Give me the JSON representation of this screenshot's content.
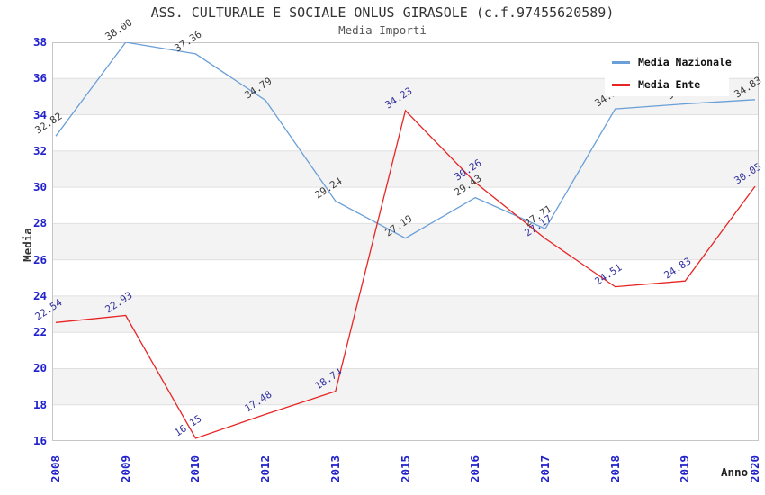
{
  "header": {
    "title": "ASS. CULTURALE E SOCIALE ONLUS GIRASOLE (c.f.97455620589)",
    "subtitle": "Media Importi"
  },
  "axes": {
    "xlabel": "Anno",
    "ylabel": "Media"
  },
  "colors": {
    "nazionale_line": "#6a9fd8",
    "ente_line": "#e82525",
    "tick_label": "#2222cc",
    "grid_band": "#f3f3f3",
    "grid_line": "#e0e0e0",
    "plot_border": "#c6c6c6",
    "nazionale_point_label": "#3a3a3a",
    "ente_point_label": "#32329e"
  },
  "chart_data": {
    "type": "line",
    "title": "ASS. CULTURALE E SOCIALE ONLUS GIRASOLE (c.f.97455620589)",
    "subtitle": "Media Importi",
    "xlabel": "Anno",
    "ylabel": "Media",
    "categories": [
      "2008",
      "2009",
      "2010",
      "2012",
      "2013",
      "2015",
      "2016",
      "2017",
      "2018",
      "2019",
      "2020"
    ],
    "ylim": [
      16,
      38
    ],
    "yticks": [
      16,
      18,
      20,
      22,
      24,
      26,
      28,
      30,
      32,
      34,
      36,
      38
    ],
    "grid": "horizontal-lines-with-alternating-bands",
    "legend_position": "top-right-inside",
    "series": [
      {
        "name": "Media Nazionale",
        "color": "#6a9fd8",
        "label_color": "#3a3a3a",
        "values": [
          32.82,
          38.0,
          37.36,
          34.79,
          29.24,
          27.19,
          29.43,
          27.71,
          34.32,
          34.6,
          34.83
        ],
        "labels": [
          "32.82",
          "38.00",
          "37.36",
          "34.79",
          "29.24",
          "27.19",
          "29.43",
          "27.71",
          "34.32",
          "34.6",
          "34.83"
        ]
      },
      {
        "name": "Media Ente",
        "color": "#e82525",
        "label_color": "#32329e",
        "values": [
          22.54,
          22.93,
          16.15,
          17.48,
          18.74,
          34.23,
          30.26,
          27.17,
          24.51,
          24.83,
          30.05
        ],
        "labels": [
          "22.54",
          "22.93",
          "16.15",
          "17.48",
          "18.74",
          "34.23",
          "30.26",
          "27.17",
          "24.51",
          "24.83",
          "30.05"
        ]
      }
    ]
  }
}
